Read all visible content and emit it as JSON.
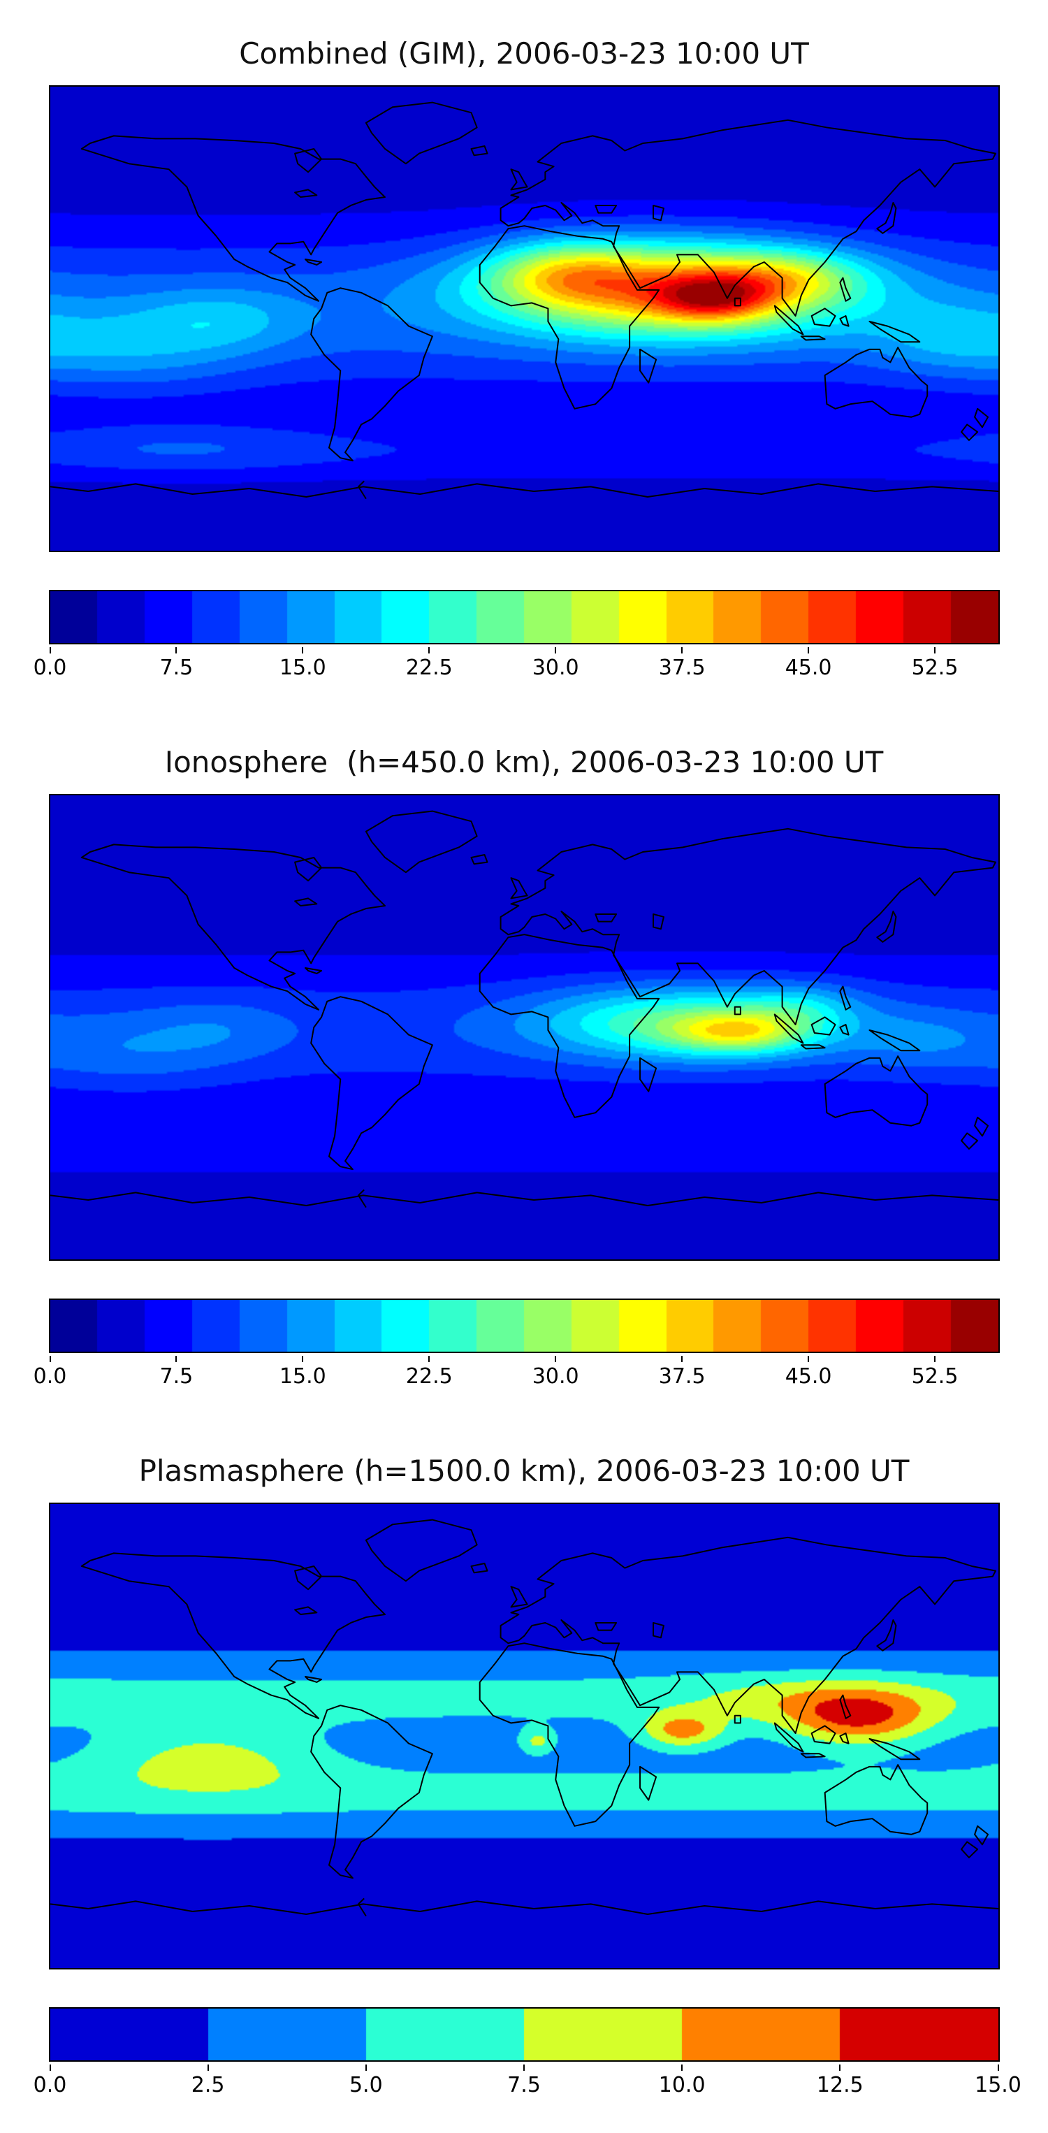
{
  "figure": {
    "background": "#ffffff",
    "coastline_color": "#000000",
    "colormap": "jet"
  },
  "chart_data": {
    "type": "heatmap",
    "projection": "equirectangular",
    "lon_range": [
      -180,
      180
    ],
    "lat_range": [
      -90,
      90
    ],
    "panels": [
      {
        "id": "combined-gim",
        "title": "Combined (GIM), 2006-03-23 10:00 UT",
        "vmin": 0,
        "vmax": 56.25,
        "levels": 20,
        "colorbar_ticks": [
          {
            "label": "0.0",
            "value": 0
          },
          {
            "label": "7.5",
            "value": 7.5
          },
          {
            "label": "15.0",
            "value": 15
          },
          {
            "label": "22.5",
            "value": 22.5
          },
          {
            "label": "30.0",
            "value": 30
          },
          {
            "label": "37.5",
            "value": 37.5
          },
          {
            "label": "45.0",
            "value": 45
          },
          {
            "label": "52.5",
            "value": 52.5
          }
        ],
        "peak_value_estimate": 55,
        "peak_location": {
          "lon": 72,
          "lat": 8
        },
        "field": {
          "base": 3.5,
          "lat_bands": [
            {
              "center": 2,
              "sigma": 32,
              "amp": 9
            },
            {
              "center": -52,
              "sigma": 12,
              "amp": 4
            }
          ],
          "hotspots": [
            {
              "lon": 55,
              "lat": 12,
              "sigma_lon": 65,
              "sigma_lat": 18,
              "amp": 30
            },
            {
              "lon": 72,
              "lat": 8,
              "sigma_lon": 22,
              "sigma_lat": 9,
              "amp": 17
            },
            {
              "lon": 100,
              "lat": 16,
              "sigma_lon": 28,
              "sigma_lat": 10,
              "amp": 10
            },
            {
              "lon": 15,
              "lat": 18,
              "sigma_lon": 28,
              "sigma_lat": 12,
              "amp": 12
            },
            {
              "lon": -150,
              "lat": -12,
              "sigma_lon": 45,
              "sigma_lat": 16,
              "amp": 6
            },
            {
              "lon": -115,
              "lat": 0,
              "sigma_lon": 30,
              "sigma_lat": 12,
              "amp": 5
            },
            {
              "lon": 160,
              "lat": -8,
              "sigma_lon": 30,
              "sigma_lat": 14,
              "amp": 5
            },
            {
              "lon": -130,
              "lat": -50,
              "sigma_lon": 55,
              "sigma_lat": 10,
              "amp": 3.5
            }
          ]
        }
      },
      {
        "id": "ionosphere",
        "title": "Ionosphere  (h=450.0 km), 2006-03-23 10:00 UT",
        "vmin": 0,
        "vmax": 56.25,
        "levels": 20,
        "colorbar_ticks": [
          {
            "label": "0.0",
            "value": 0
          },
          {
            "label": "7.5",
            "value": 7.5
          },
          {
            "label": "15.0",
            "value": 15
          },
          {
            "label": "22.5",
            "value": 22.5
          },
          {
            "label": "30.0",
            "value": 30
          },
          {
            "label": "37.5",
            "value": 37.5
          },
          {
            "label": "45.0",
            "value": 45
          },
          {
            "label": "52.5",
            "value": 52.5
          }
        ],
        "peak_value_estimate": 37,
        "peak_location": {
          "lon": 82,
          "lat": -2
        },
        "field": {
          "base": 3,
          "lat_bands": [
            {
              "center": -2,
              "sigma": 30,
              "amp": 7
            },
            {
              "center": -50,
              "sigma": 12,
              "amp": 3
            }
          ],
          "hotspots": [
            {
              "lon": 60,
              "lat": 2,
              "sigma_lon": 55,
              "sigma_lat": 14,
              "amp": 16
            },
            {
              "lon": 82,
              "lat": -2,
              "sigma_lon": 26,
              "sigma_lat": 8,
              "amp": 15
            },
            {
              "lon": 105,
              "lat": 8,
              "sigma_lon": 22,
              "sigma_lat": 9,
              "amp": 6
            },
            {
              "lon": -150,
              "lat": -10,
              "sigma_lon": 40,
              "sigma_lat": 15,
              "amp": 4
            },
            {
              "lon": -115,
              "lat": 0,
              "sigma_lon": 28,
              "sigma_lat": 12,
              "amp": 3
            },
            {
              "lon": 150,
              "lat": -5,
              "sigma_lon": 28,
              "sigma_lat": 12,
              "amp": 4
            }
          ]
        }
      },
      {
        "id": "plasmasphere",
        "title": "Plasmasphere (h=1500.0 km), 2006-03-23 10:00 UT",
        "vmin": 0,
        "vmax": 15,
        "levels": 6,
        "colorbar_ticks": [
          {
            "label": "0.0",
            "value": 0
          },
          {
            "label": "2.5",
            "value": 2.5
          },
          {
            "label": "5.0",
            "value": 5
          },
          {
            "label": "7.5",
            "value": 7.5
          },
          {
            "label": "10.0",
            "value": 10
          },
          {
            "label": "12.5",
            "value": 12.5
          },
          {
            "label": "15.0",
            "value": 15
          }
        ],
        "peak_value_estimate": 12.5,
        "peak_location": {
          "lon": 127,
          "lat": 6
        },
        "field": {
          "base": 1.2,
          "lat_bands": [
            {
              "center": 15,
              "sigma": 16,
              "amp": 4.5
            },
            {
              "center": -22,
              "sigma": 16,
              "amp": 4.5
            }
          ],
          "hotspots": [
            {
              "lon": -120,
              "lat": -8,
              "sigma_lon": 45,
              "sigma_lat": 14,
              "amp": 4.5
            },
            {
              "lon": 60,
              "lat": 2,
              "sigma_lon": 16,
              "sigma_lat": 7,
              "amp": 7
            },
            {
              "lon": 127,
              "lat": 6,
              "sigma_lon": 28,
              "sigma_lat": 11,
              "amp": 7.5
            },
            {
              "lon": 110,
              "lat": 14,
              "sigma_lon": 50,
              "sigma_lat": 10,
              "amp": 3
            },
            {
              "lon": 5,
              "lat": -2,
              "sigma_lon": 7,
              "sigma_lat": 5,
              "amp": 4.5
            }
          ]
        }
      }
    ]
  }
}
